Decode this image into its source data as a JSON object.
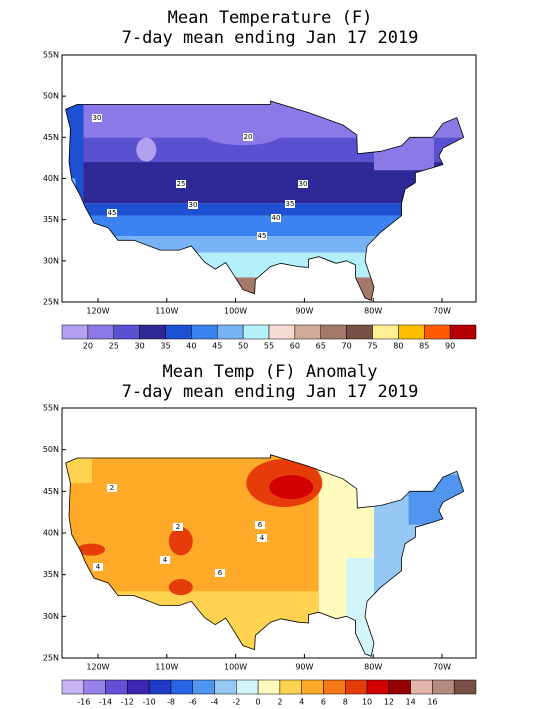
{
  "panels": [
    {
      "title_lines": [
        "Mean Temperature (F)",
        "7-day mean ending Jan 17 2019"
      ],
      "lat_labels": [
        "55N",
        "50N",
        "45N",
        "40N",
        "35N",
        "30N",
        "25N"
      ],
      "lon_labels": [
        "120W",
        "110W",
        "100W",
        "90W",
        "80W",
        "70W"
      ],
      "contour_labels": [
        "30",
        "20",
        "25",
        "30",
        "30",
        "35",
        "40",
        "45",
        "45"
      ],
      "colorbar": {
        "labels": [
          "20",
          "25",
          "30",
          "35",
          "40",
          "45",
          "50",
          "55",
          "60",
          "65",
          "70",
          "75",
          "80",
          "85",
          "90"
        ],
        "colors": [
          "#b4a0f0",
          "#8c78e6",
          "#5a50d2",
          "#2d2896",
          "#1e50d2",
          "#3c82f0",
          "#78b4f5",
          "#b4f0fa",
          "#f5dcd2",
          "#d2aa9b",
          "#a57869",
          "#785046",
          "#fff096",
          "#ffbe00",
          "#ff5a00",
          "#b40000"
        ]
      }
    },
    {
      "title_lines": [
        "Mean Temp (F) Anomaly",
        "7-day mean ending Jan 17 2019"
      ],
      "lat_labels": [
        "55N",
        "50N",
        "45N",
        "40N",
        "35N",
        "30N",
        "25N"
      ],
      "lon_labels": [
        "120W",
        "110W",
        "100W",
        "90W",
        "80W",
        "70W"
      ],
      "contour_labels": [
        "2",
        "2",
        "6",
        "4",
        "4",
        "6",
        "4"
      ],
      "colorbar": {
        "labels": [
          "-16",
          "-14",
          "-12",
          "-10",
          "-8",
          "-6",
          "-4",
          "-2",
          "0",
          "2",
          "4",
          "6",
          "8",
          "10",
          "12",
          "14",
          "16"
        ],
        "colors": [
          "#c8b4f5",
          "#9682eb",
          "#6450d7",
          "#3c28b4",
          "#1e3cc8",
          "#2864e6",
          "#5096f0",
          "#96c8f5",
          "#d2f5fa",
          "#fffabe",
          "#ffd250",
          "#ffaa28",
          "#f57814",
          "#e63c0a",
          "#d20000",
          "#960000",
          "#e6b4aa",
          "#b48c7d",
          "#785046"
        ]
      }
    }
  ]
}
